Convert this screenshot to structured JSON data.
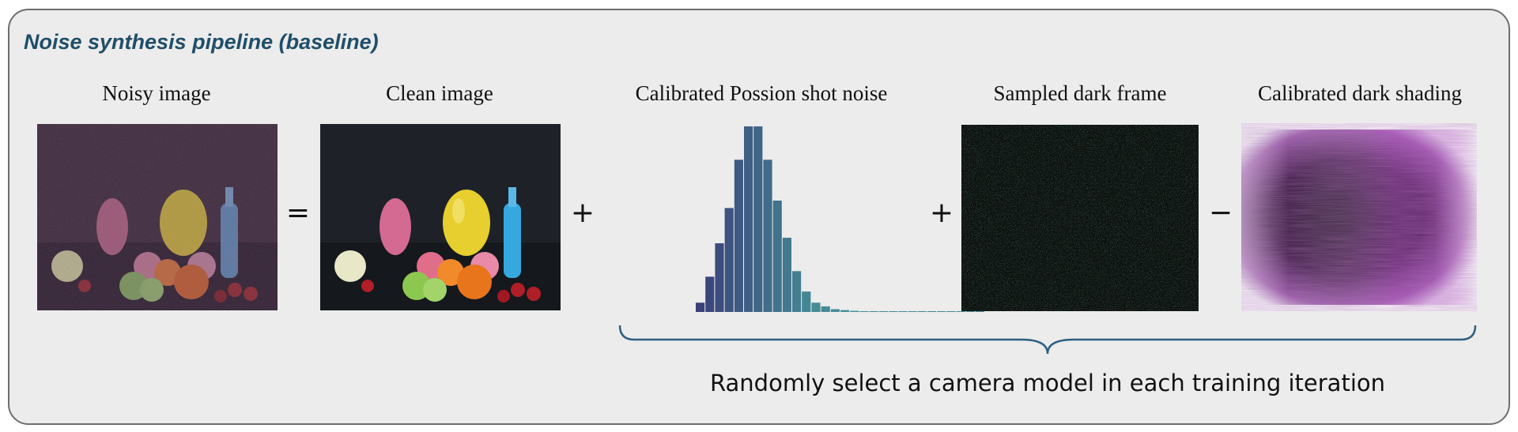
{
  "title": "Noise synthesis pipeline (baseline)",
  "labels": {
    "noisy": "Noisy image",
    "clean": "Clean image",
    "shot": "Calibrated Possion shot noise",
    "dark": "Sampled dark frame",
    "shading": "Calibrated dark shading"
  },
  "operators": {
    "equals": "=",
    "plus1": "+",
    "plus2": "+",
    "minus": "−"
  },
  "caption": "Randomly select a camera model in each training iteration",
  "colors": {
    "title": "#1f4e69",
    "brace": "#2d5f80",
    "panel_bg": "#ececec",
    "panel_border": "#6e6e6e"
  },
  "chart_data": {
    "type": "bar",
    "values": [
      0.05,
      0.19,
      0.37,
      0.56,
      0.82,
      1.0,
      1.0,
      0.82,
      0.6,
      0.4,
      0.22,
      0.11,
      0.05,
      0.03,
      0.015,
      0.01,
      0.006,
      0.004,
      0.003,
      0.002,
      0.002,
      0.001,
      0.001,
      0.001,
      0.001,
      0.001,
      0.001,
      0.001,
      0.001,
      0.001
    ],
    "title": "",
    "xlabel": "",
    "ylabel": "",
    "grid": false
  }
}
